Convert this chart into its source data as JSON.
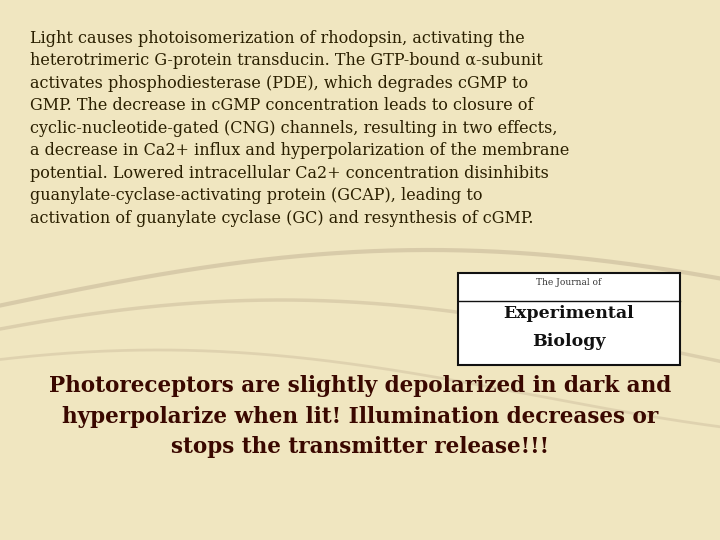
{
  "background_color": "#f0e6c0",
  "paragraph_text": "Light causes photoisomerization of rhodopsin, activating the\nheterotrimeric G-protein transducin. The GTP-bound α-subunit\nactivates phosphodiesterase (PDE), which degrades cGMP to\nGMP. The decrease in cGMP concentration leads to closure of\ncyclic-nucleotide-gated (CNG) channels, resulting in two effects,\na decrease in Ca2+ influx and hyperpolarization of the membrane\npotential. Lowered intracellular Ca2+ concentration disinhibits\nguanylate-cyclase-activating protein (GCAP), leading to\nactivation of guanylate cyclase (GC) and resynthesis of cGMP.",
  "paragraph_color": "#2a1f00",
  "paragraph_fontsize": 11.5,
  "bold_text": "Photoreceptors are slightly depolarized in dark and\nhyperpolarize when lit! Illumination decreases or\nstops the transmitter release!!!",
  "bold_color": "#3a0800",
  "bold_fontsize": 15.5,
  "journal_label_small": "The Journal of",
  "journal_label_big1": "Experimental",
  "journal_label_big2": "Biology",
  "journal_box_facecolor": "#ffffff",
  "journal_border_color": "#111111",
  "journal_small_fontsize": 6.5,
  "journal_big_fontsize": 12.5,
  "journal_big_color": "#111111",
  "journal_small_color": "#333333",
  "curve_color": "#cfc0a0"
}
